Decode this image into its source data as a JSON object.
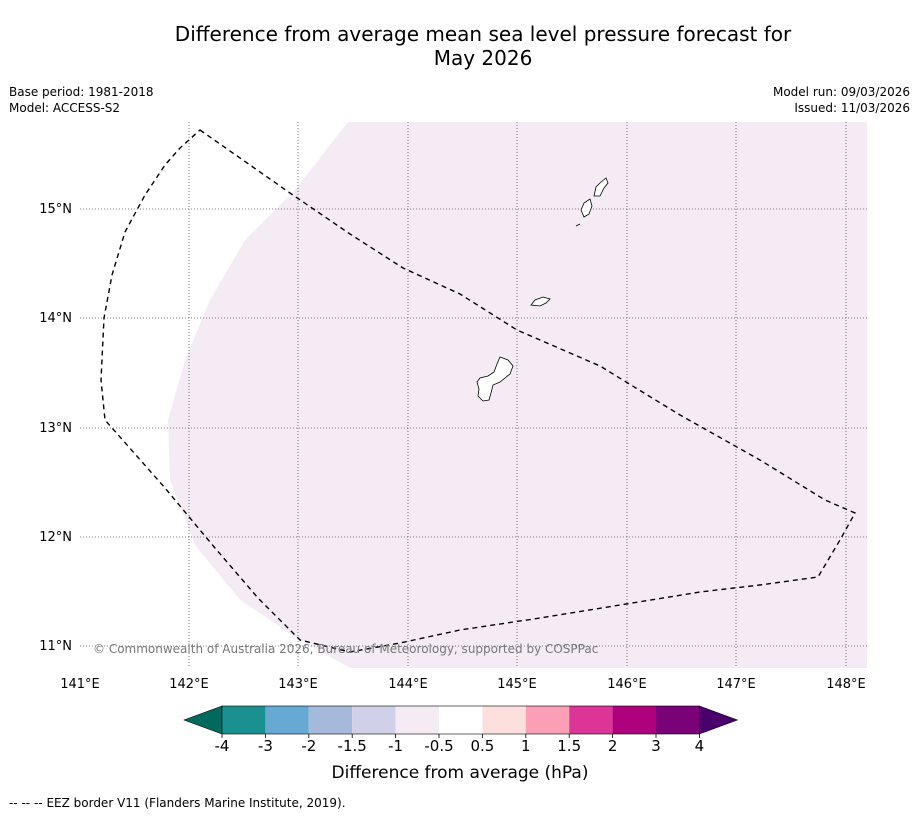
{
  "title": {
    "line1": "Difference from average mean sea level pressure forecast for",
    "line2": "May 2026"
  },
  "meta": {
    "base_period": "Base period: 1981-2018",
    "model": "Model: ACCESS-S2",
    "model_run": "Model run: 09/03/2026",
    "issued": "Issued: 11/03/2026"
  },
  "map": {
    "lat_labels": [
      "15°N",
      "14°N",
      "13°N",
      "12°N",
      "11°N"
    ],
    "lon_labels": [
      "141°E",
      "142°E",
      "143°E",
      "144°E",
      "145°E",
      "146°E",
      "147°E",
      "148°E"
    ],
    "copyright": "© Commonwealth of Australia 2026, Bureau of Meteorology, supported by COSPPac",
    "anomaly_band": "-0.5 to -1 hPa"
  },
  "colorbar": {
    "ticks": [
      "-4",
      "-3",
      "-2",
      "-1.5",
      "-1",
      "-0.5",
      "0.5",
      "1",
      "1.5",
      "2",
      "3",
      "4"
    ],
    "colors": [
      "#006a5e",
      "#1a9190",
      "#66aad3",
      "#a5b9db",
      "#d0d0e8",
      "#f4ebf5",
      "#ffffff",
      "#fde0dd",
      "#fa9fb5",
      "#dd3497",
      "#ae017e",
      "#7a0177",
      "#49006a"
    ],
    "label": "Difference from average (hPa)"
  },
  "footer": {
    "legend_symbol": "--  --  --",
    "legend_text": "EEZ border V11 (Flanders Marine Institute, 2019)."
  }
}
